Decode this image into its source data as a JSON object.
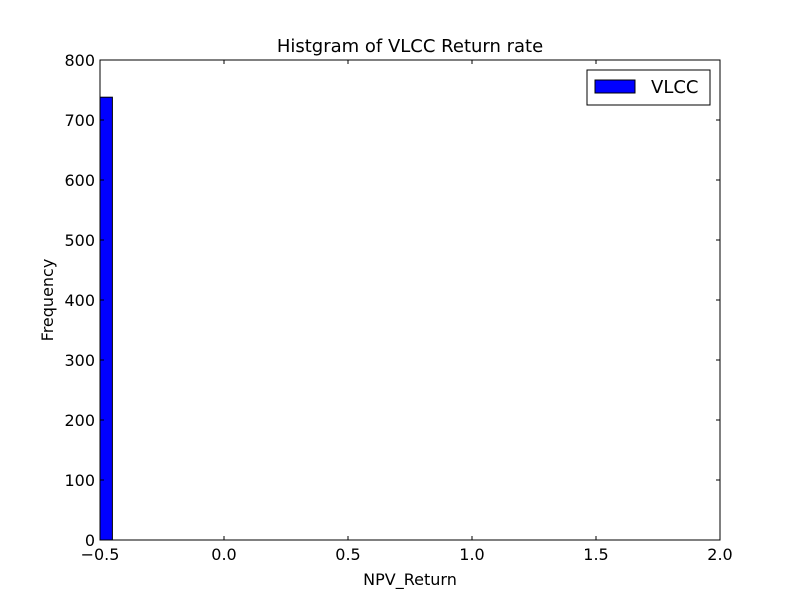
{
  "chart_data": {
    "type": "bar",
    "title": "Histgram of VLCC Return rate",
    "xlabel": "NPV_Return",
    "ylabel": "Frequency",
    "xlim": [
      -0.5,
      2.0
    ],
    "ylim": [
      0,
      800
    ],
    "xticks": [
      -0.5,
      0.0,
      0.5,
      1.0,
      1.5,
      2.0
    ],
    "xtick_labels": [
      "−0.5",
      "0.0",
      "0.5",
      "1.0",
      "1.5",
      "2.0"
    ],
    "yticks": [
      0,
      100,
      200,
      300,
      400,
      500,
      600,
      700,
      800
    ],
    "ytick_labels": [
      "0",
      "100",
      "200",
      "300",
      "400",
      "500",
      "600",
      "700",
      "800"
    ],
    "grid": false,
    "legend_position": "top-right",
    "series": [
      {
        "name": "VLCC",
        "color": "#0000ff",
        "bins": [
          {
            "x_start": -0.5,
            "x_end": -0.45,
            "value": 738
          }
        ]
      }
    ]
  }
}
